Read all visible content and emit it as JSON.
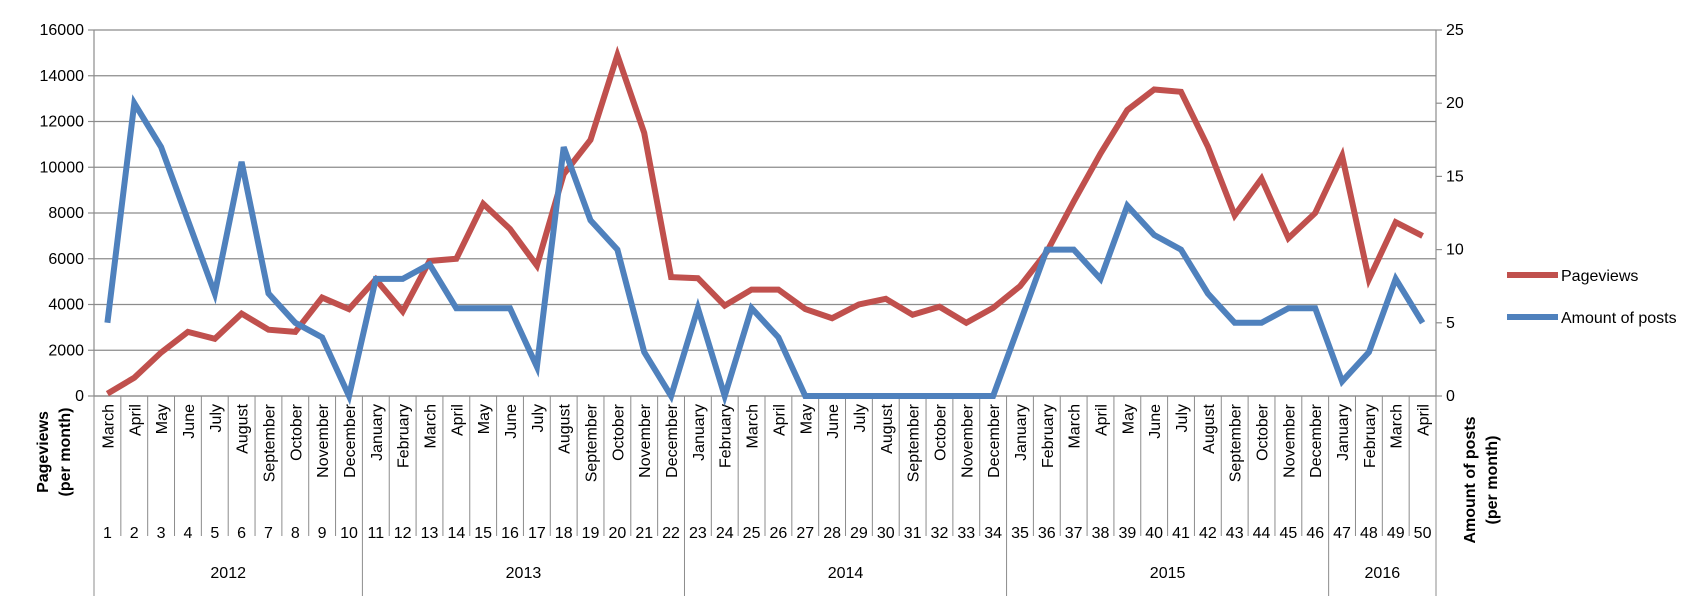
{
  "chart_data": {
    "type": "line",
    "ylabel": "Pageviews\n(per month)",
    "y2label": "Amount of posts\n(per month)",
    "ylim": [
      0,
      16000
    ],
    "y2lim": [
      0,
      25
    ],
    "yticks": [
      "0",
      "2000",
      "4000",
      "6000",
      "8000",
      "10000",
      "12000",
      "14000",
      "16000"
    ],
    "y2ticks": [
      "0",
      "5",
      "10",
      "15",
      "20",
      "25"
    ],
    "months": [
      "March",
      "April",
      "May",
      "June",
      "July",
      "August",
      "September",
      "October",
      "November",
      "December",
      "January",
      "February",
      "March",
      "April",
      "May",
      "June",
      "July",
      "August",
      "September",
      "October",
      "November",
      "December",
      "January",
      "February",
      "March",
      "April",
      "May",
      "June",
      "July",
      "August",
      "September",
      "October",
      "November",
      "December",
      "January",
      "February",
      "March",
      "April",
      "May",
      "June",
      "July",
      "August",
      "September",
      "October",
      "November",
      "December",
      "January",
      "February",
      "March",
      "April"
    ],
    "x": [
      1,
      2,
      3,
      4,
      5,
      6,
      7,
      8,
      9,
      10,
      11,
      12,
      13,
      14,
      15,
      16,
      17,
      18,
      19,
      20,
      21,
      22,
      23,
      24,
      25,
      26,
      27,
      28,
      29,
      30,
      31,
      32,
      33,
      34,
      35,
      36,
      37,
      38,
      39,
      40,
      41,
      42,
      43,
      44,
      45,
      46,
      47,
      48,
      49,
      50
    ],
    "years": [
      {
        "label": "2012",
        "start": 1,
        "end": 10
      },
      {
        "label": "2013",
        "start": 11,
        "end": 22
      },
      {
        "label": "2014",
        "start": 23,
        "end": 34
      },
      {
        "label": "2015",
        "start": 35,
        "end": 46
      },
      {
        "label": "2016",
        "start": 47,
        "end": 50
      }
    ],
    "legend_position": "right",
    "grid": true,
    "series": [
      {
        "name": "Pageviews",
        "axis": "left",
        "color": "#c0504d",
        "values": [
          100,
          800,
          1900,
          2800,
          2500,
          3600,
          2900,
          2800,
          4300,
          3800,
          5100,
          3700,
          5900,
          6000,
          8400,
          7300,
          5700,
          9700,
          11200,
          14900,
          11500,
          5200,
          5150,
          3950,
          4650,
          4650,
          3800,
          3400,
          4000,
          4250,
          3550,
          3900,
          3200,
          3850,
          4800,
          6300,
          8500,
          10600,
          12500,
          13400,
          13300,
          10900,
          7900,
          9500,
          6900,
          8000,
          10500,
          5100,
          7600,
          7000
        ]
      },
      {
        "name": "Amount of posts",
        "axis": "right",
        "color": "#4f81bd",
        "values": [
          5,
          20,
          17,
          12,
          7,
          16,
          7,
          5,
          4,
          0,
          8,
          8,
          9,
          6,
          6,
          6,
          2,
          17,
          12,
          10,
          3,
          0,
          6,
          0,
          6,
          4,
          0,
          0,
          0,
          0,
          0,
          0,
          0,
          0,
          5,
          10,
          10,
          8,
          13,
          11,
          10,
          7,
          5,
          5,
          6,
          6,
          1,
          3,
          8,
          5
        ]
      }
    ]
  }
}
